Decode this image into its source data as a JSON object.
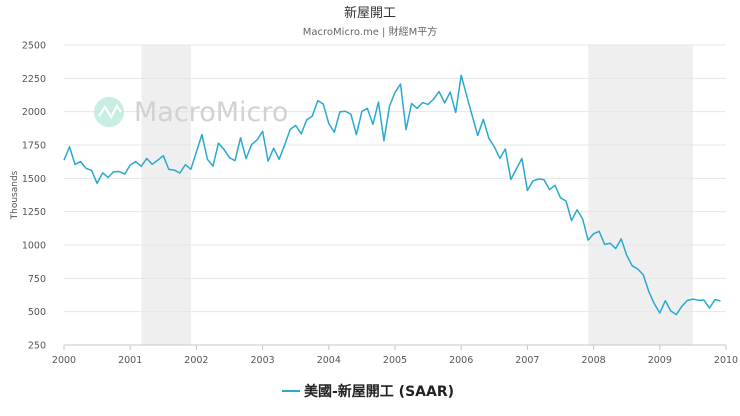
{
  "chart_data": {
    "type": "line",
    "title": "新屋開工",
    "subtitle": "MacroMicro.me | 財經M平方",
    "watermark": "MacroMicro",
    "xlabel": "",
    "ylabel": "Thousands",
    "xlim": [
      2000,
      2010
    ],
    "ylim": [
      250,
      2500
    ],
    "x_ticks": [
      2000,
      2001,
      2002,
      2003,
      2004,
      2005,
      2006,
      2007,
      2008,
      2009,
      2010
    ],
    "y_ticks": [
      250,
      500,
      750,
      1000,
      1250,
      1500,
      1750,
      2000,
      2250,
      2500
    ],
    "recession_bands": [
      [
        2001.17,
        2001.92
      ],
      [
        2007.92,
        2009.5
      ]
    ],
    "series": [
      {
        "name": "美國-新屋開工 (SAAR)",
        "color": "#29a9cf",
        "x_start": 2000.0,
        "x_step": 0.0833333,
        "values": [
          1636,
          1737,
          1604,
          1626,
          1575,
          1559,
          1463,
          1541,
          1507,
          1549,
          1551,
          1532,
          1600,
          1625,
          1590,
          1649,
          1605,
          1636,
          1670,
          1567,
          1562,
          1540,
          1602,
          1568,
          1698,
          1829,
          1642,
          1592,
          1764,
          1717,
          1655,
          1633,
          1804,
          1648,
          1753,
          1788,
          1853,
          1629,
          1726,
          1643,
          1751,
          1867,
          1897,
          1833,
          1939,
          1967,
          2083,
          2057,
          1911,
          1846,
          1998,
          2003,
          1981,
          1828,
          2002,
          2024,
          1905,
          2072,
          1782,
          2042,
          2144,
          2207,
          1864,
          2061,
          2025,
          2068,
          2054,
          2095,
          2151,
          2065,
          2147,
          1994,
          2273,
          2119,
          1969,
          1821,
          1942,
          1802,
          1737,
          1650,
          1720,
          1491,
          1570,
          1649,
          1409,
          1480,
          1495,
          1490,
          1415,
          1448,
          1354,
          1330,
          1183,
          1264,
          1197,
          1037,
          1084,
          1103,
          1005,
          1013,
          973,
          1046,
          923,
          844,
          820,
          777,
          652,
          560,
          490,
          582,
          505,
          478,
          540,
          585,
          594,
          586,
          587,
          527,
          590,
          581
        ]
      }
    ]
  }
}
